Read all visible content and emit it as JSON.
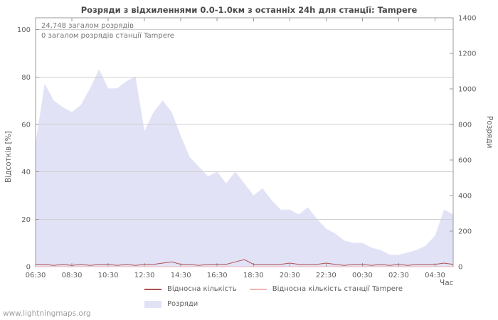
{
  "page": {
    "watermark": "www.lightningmaps.org"
  },
  "colors": {
    "background": "#ffffff",
    "grid": "#d0d0d0",
    "border": "#9a9a9a",
    "text": "#606060",
    "annotation": "#787878",
    "title": "#4a4a4a"
  },
  "chart_data": {
    "type": "area",
    "title": "Розряди з відхиленнями 0.0-1.0км з останніх 24h для станції: Tampere",
    "xlabel": "Час",
    "ylabel_left": "Відсотків [%]",
    "ylabel_right": "Розряди",
    "ylim_left": [
      0,
      105
    ],
    "ylim_right": [
      0,
      1400
    ],
    "y_ticks_left": [
      0,
      20,
      40,
      60,
      80,
      100
    ],
    "y_ticks_right": [
      0,
      200,
      400,
      600,
      800,
      1000,
      1200,
      1400
    ],
    "x_tick_labels": [
      "06:30",
      "08:30",
      "10:30",
      "12:30",
      "14:30",
      "16:30",
      "18:30",
      "20:30",
      "22:30",
      "00:30",
      "02:30",
      "04:30"
    ],
    "x_tick_step": 4,
    "x_start": "06:30",
    "x_interval_minutes": 30,
    "grid": true,
    "legend_position": "bottom",
    "annotations": [
      "24,748 загалом розрядів",
      "0 загалом розрядів станції Tampere"
    ],
    "series": [
      {
        "name": "Розряди",
        "kind": "area",
        "axis": "right",
        "color": "#e2e2f7",
        "values": [
          695,
          1030,
          935,
          897,
          870,
          910,
          1003,
          1110,
          1003,
          1003,
          1043,
          1070,
          763,
          870,
          935,
          870,
          735,
          615,
          562,
          508,
          535,
          468,
          535,
          468,
          401,
          441,
          374,
          321,
          321,
          294,
          334,
          268,
          214,
          187,
          147,
          134,
          134,
          107,
          94,
          67,
          67,
          80,
          94,
          120,
          174,
          321,
          294
        ]
      },
      {
        "name": "Відносна кількість станції Tampere",
        "kind": "line",
        "axis": "left",
        "color": "#efb4b4",
        "values_constant": 0
      },
      {
        "name": "Відносна кількість",
        "kind": "line",
        "axis": "left",
        "color": "#b0504f",
        "values": [
          1,
          1,
          0.5,
          1,
          0.5,
          1,
          0.5,
          1,
          1,
          0.5,
          1,
          0.5,
          1,
          1,
          1.5,
          2,
          1,
          1,
          0.5,
          1,
          1,
          1,
          2,
          3,
          1,
          1,
          1,
          1,
          1.5,
          1,
          1,
          1,
          1.5,
          1,
          0.5,
          1,
          1,
          0.5,
          1,
          0.5,
          1,
          0.5,
          1,
          1,
          1,
          1.5,
          1
        ]
      }
    ]
  }
}
